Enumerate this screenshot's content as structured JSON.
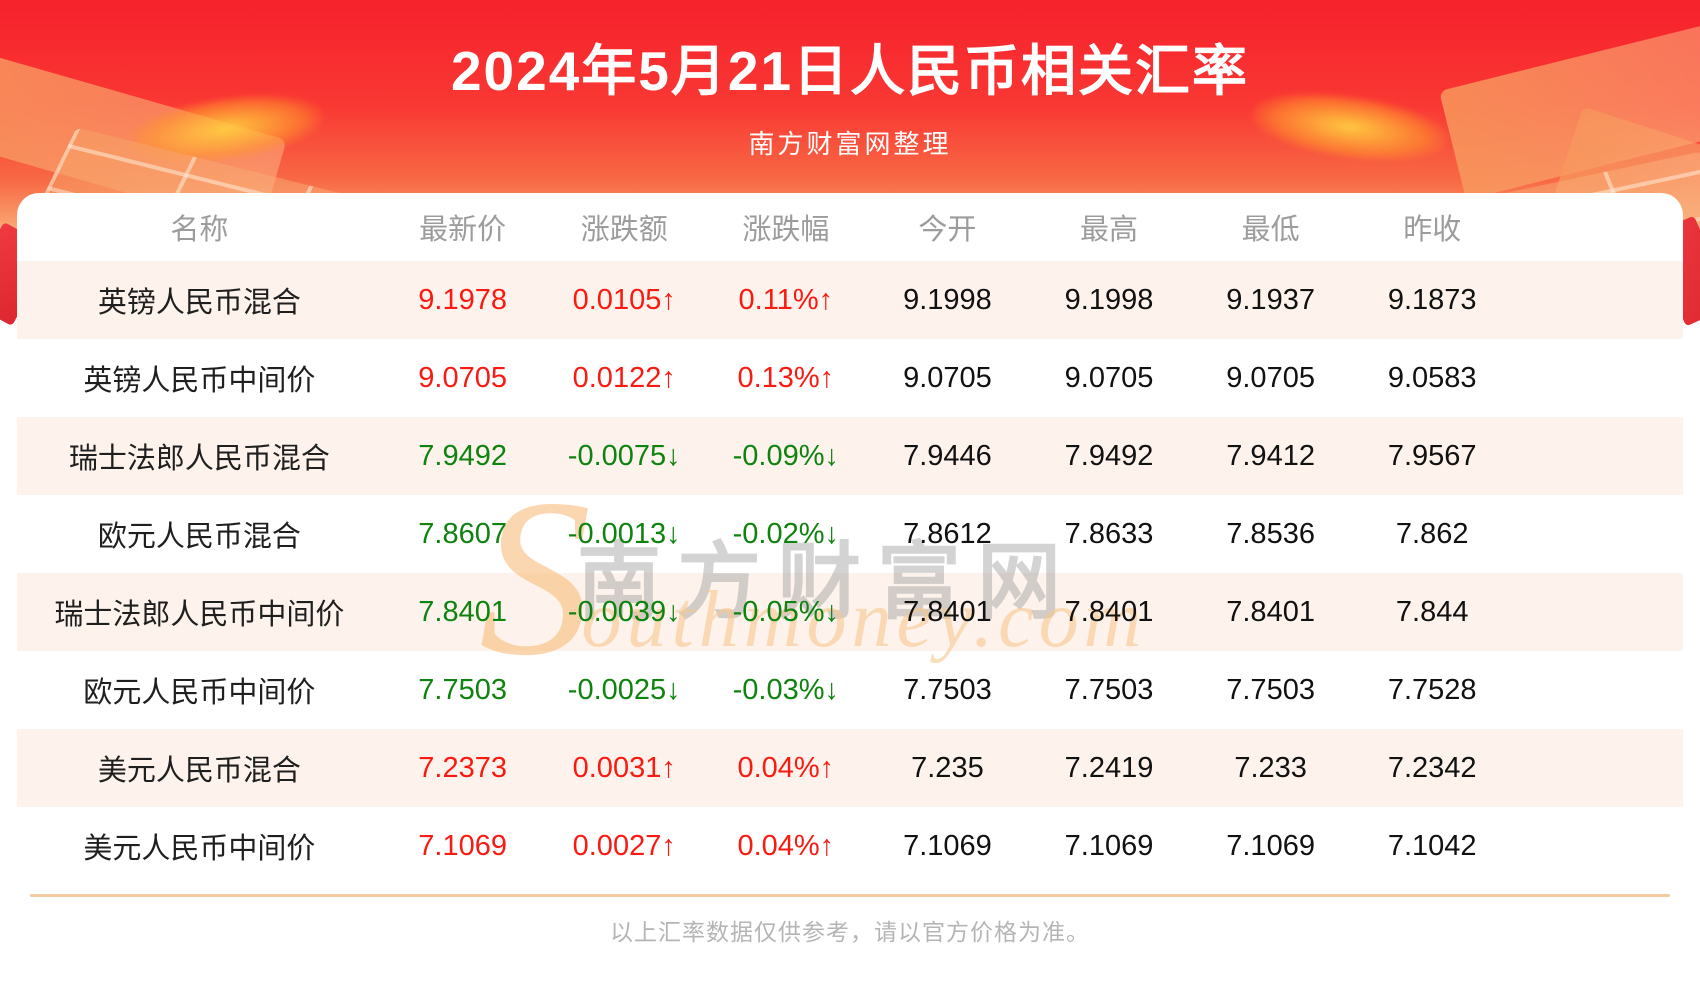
{
  "header": {
    "title": "2024年5月21日人民币相关汇率",
    "subtitle": "南方财富网整理"
  },
  "watermark": {
    "cn": "南方财富网",
    "en_initial": "S",
    "en_rest": "outhmoney.com"
  },
  "chart_data": {
    "type": "table",
    "title": "2024年5月21日人民币相关汇率",
    "source_note": "南方财富网整理",
    "columns": [
      "名称",
      "最新价",
      "涨跌额",
      "涨跌幅",
      "今开",
      "最高",
      "最低",
      "昨收"
    ],
    "rows": [
      {
        "name": "英镑人民币混合",
        "last": "9.1978",
        "change": "0.0105↑",
        "pct": "0.11%↑",
        "open": "9.1998",
        "high": "9.1998",
        "low": "9.1937",
        "prev": "9.1873",
        "dir": "up"
      },
      {
        "name": "英镑人民币中间价",
        "last": "9.0705",
        "change": "0.0122↑",
        "pct": "0.13%↑",
        "open": "9.0705",
        "high": "9.0705",
        "low": "9.0705",
        "prev": "9.0583",
        "dir": "up"
      },
      {
        "name": "瑞士法郎人民币混合",
        "last": "7.9492",
        "change": "-0.0075↓",
        "pct": "-0.09%↓",
        "open": "7.9446",
        "high": "7.9492",
        "low": "7.9412",
        "prev": "7.9567",
        "dir": "down"
      },
      {
        "name": "欧元人民币混合",
        "last": "7.8607",
        "change": "-0.0013↓",
        "pct": "-0.02%↓",
        "open": "7.8612",
        "high": "7.8633",
        "low": "7.8536",
        "prev": "7.862",
        "dir": "down"
      },
      {
        "name": "瑞士法郎人民币中间价",
        "last": "7.8401",
        "change": "-0.0039↓",
        "pct": "-0.05%↓",
        "open": "7.8401",
        "high": "7.8401",
        "low": "7.8401",
        "prev": "7.844",
        "dir": "down"
      },
      {
        "name": "欧元人民币中间价",
        "last": "7.7503",
        "change": "-0.0025↓",
        "pct": "-0.03%↓",
        "open": "7.7503",
        "high": "7.7503",
        "low": "7.7503",
        "prev": "7.7528",
        "dir": "down"
      },
      {
        "name": "美元人民币混合",
        "last": "7.2373",
        "change": "0.0031↑",
        "pct": "0.04%↑",
        "open": "7.235",
        "high": "7.2419",
        "low": "7.233",
        "prev": "7.2342",
        "dir": "up"
      },
      {
        "name": "美元人民币中间价",
        "last": "7.1069",
        "change": "0.0027↑",
        "pct": "0.04%↑",
        "open": "7.1069",
        "high": "7.1069",
        "low": "7.1069",
        "prev": "7.1042",
        "dir": "up"
      }
    ]
  },
  "footer": {
    "note": "以上汇率数据仅供参考，请以官方价格为准。"
  },
  "colors": {
    "up_red": "#f91a12",
    "down_green": "#0f830f",
    "banner_red": "#f6212c",
    "row_alt_bg": "#fdf3ec",
    "divider_tan": "#f4cba1"
  }
}
